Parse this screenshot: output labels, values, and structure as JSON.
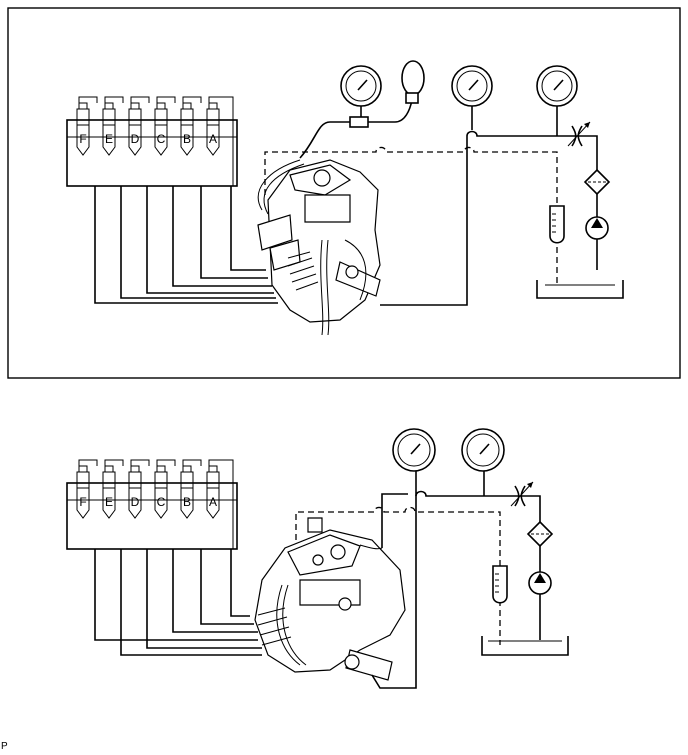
{
  "image_code": "P",
  "diagrams": [
    {
      "name": "upper-test-setup",
      "framed": true,
      "nozzle_labels": [
        "F",
        "E",
        "D",
        "C",
        "B",
        "A"
      ],
      "gauge_count": 3,
      "has_hand_pump_bulb": true
    },
    {
      "name": "lower-test-setup",
      "framed": false,
      "nozzle_labels": [
        "F",
        "E",
        "D",
        "C",
        "B",
        "A"
      ],
      "gauge_count": 2,
      "has_hand_pump_bulb": false
    }
  ],
  "colors": {
    "line": "#000000",
    "background": "#ffffff"
  }
}
